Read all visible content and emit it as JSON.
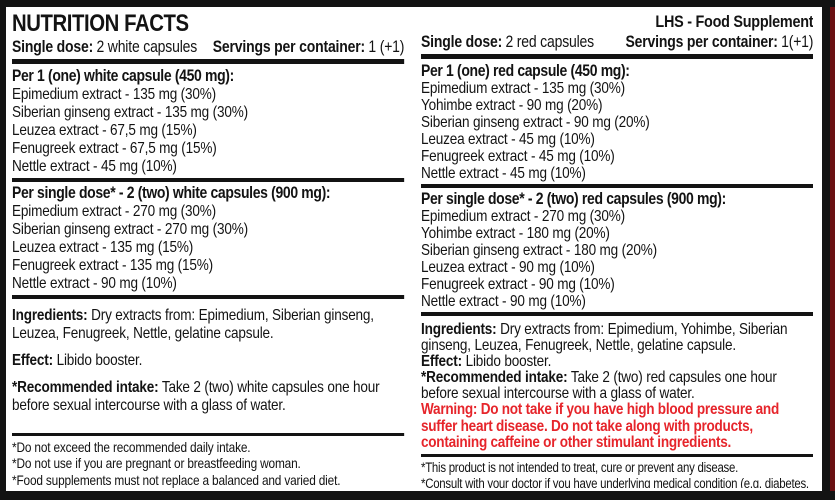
{
  "colors": {
    "ink_black": "#131313",
    "warning_red": "#e6252b",
    "edge_red": "#6a1012"
  },
  "left": {
    "title": "NUTRITION FACTS",
    "single_dose": {
      "label": "Single dose:",
      "value": "2 white capsules"
    },
    "servings": {
      "label": "Servings per container:",
      "value": "1 (+1)"
    },
    "per_capsule": {
      "heading": "Per 1 (one) white capsule (450 mg):",
      "rows": [
        "Epimedium extract - 135 mg (30%)",
        "Siberian ginseng extract - 135 mg (30%)",
        "Leuzea extract - 67,5 mg (15%)",
        "Fenugreek extract - 67,5 mg (15%)",
        "Nettle extract - 45 mg (10%)"
      ]
    },
    "per_dose": {
      "heading": "Per single dose* - 2 (two) white capsules (900 mg):",
      "rows": [
        "Epimedium extract - 270 mg (30%)",
        "Siberian ginseng extract - 270 mg (30%)",
        "Leuzea extract - 135 mg (15%)",
        "Fenugreek extract - 135 mg (15%)",
        "Nettle extract - 90 mg (10%)"
      ]
    },
    "ingredients": {
      "label": "Ingredients:",
      "text": "Dry extracts from: Epimedium, Siberian ginseng, Leuzea, Fenugreek, Nettle, gelatine capsule."
    },
    "effect": {
      "label": "Effect:",
      "text": "Libido booster."
    },
    "intake": {
      "label": "*Recommended intake:",
      "text": "Take 2 (two) white capsules one hour before sexual intercourse with a glass of water."
    },
    "footnotes": [
      "*Do not exceed the recommended daily intake.",
      "*Do not use if you are pregnant or breastfeeding woman.",
      "*Food supplements must not replace a balanced and varied diet."
    ]
  },
  "right": {
    "brand": "LHS - Food Supplement",
    "single_dose": {
      "label": "Single dose:",
      "value": "2 red capsules"
    },
    "servings": {
      "label": "Servings per container:",
      "value": "1(+1)"
    },
    "per_capsule": {
      "heading": "Per 1 (one) red capsule (450 mg):",
      "rows": [
        "Epimedium extract - 135 mg (30%)",
        "Yohimbe extract - 90 mg (20%)",
        "Siberian ginseng extract - 90 mg (20%)",
        "Leuzea extract - 45 mg (10%)",
        "Fenugreek extract - 45 mg (10%)",
        "Nettle extract - 45 mg (10%)"
      ]
    },
    "per_dose": {
      "heading": "Per single dose* - 2 (two) red capsules (900 mg):",
      "rows": [
        "Epimedium extract - 270 mg (30%)",
        "Yohimbe extract - 180 mg (20%)",
        "Siberian ginseng extract - 180 mg (20%)",
        "Leuzea extract - 90 mg (10%)",
        "Fenugreek extract - 90 mg (10%)",
        "Nettle extract - 90 mg (10%)"
      ]
    },
    "ingredients": {
      "label": "Ingredients:",
      "text": "Dry extracts from: Epimedium, Yohimbe, Siberian ginseng, Leuzea, Fenugreek, Nettle, gelatine capsule."
    },
    "effect": {
      "label": "Effect:",
      "text": "Libido booster."
    },
    "intake": {
      "label": "*Recommended intake:",
      "text": "Take 2 (two) red capsules one hour before sexual intercourse with a glass of water."
    },
    "warning": "Warning: Do not take if you have high blood pressure and suffer heart disease. Do not take along with products, containing caffeine or other stimulant ingredients.",
    "footnotes": [
      "*This product is not intended to treat, cure or prevent any disease.",
      "*Consult with your doctor if you have underlying medical condition (e.g. diabetes, epilepsy, hyperthyroidism), or if you are on medication."
    ]
  }
}
